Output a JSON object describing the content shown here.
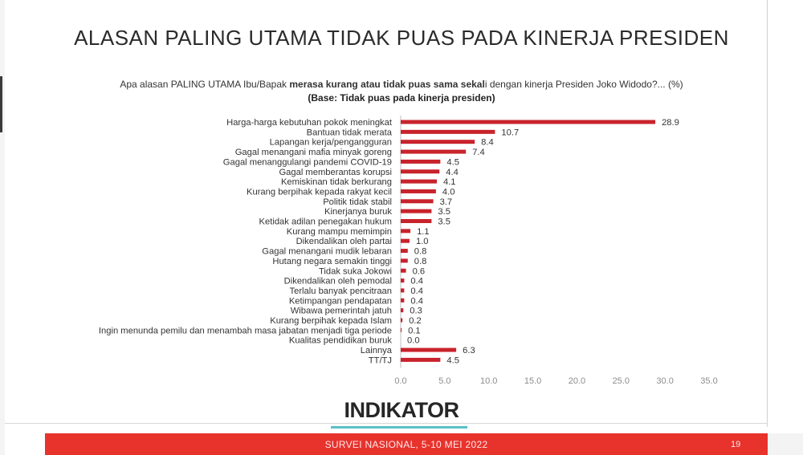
{
  "title": "ALASAN PALING UTAMA TIDAK PUAS PADA KINERJA PRESIDEN",
  "question": {
    "prefix": "Apa alasan PALING UTAMA Ibu/Bapak ",
    "bold": "merasa kurang atau tidak puas sama sekal",
    "suffix": "i dengan kinerja Presiden Joko Widodo?...  (%)"
  },
  "base": "(Base:  Tidak puas pada kinerja presiden)",
  "colors": {
    "bar": "#c8232c",
    "axis": "#bfbfbf",
    "footer": "#e8322c",
    "accent": "#59c1c7"
  },
  "chart_data": {
    "type": "bar",
    "orientation": "horizontal",
    "categories": [
      "Harga-harga kebutuhan pokok meningkat",
      "Bantuan tidak merata",
      "Lapangan kerja/pengangguran",
      "Gagal menangani mafia minyak goreng",
      "Gagal menanggulangi pandemi COVID-19",
      "Gagal memberantas korupsi",
      "Kemiskinan tidak berkurang",
      "Kurang berpihak kepada rakyat kecil",
      "Politik tidak stabil",
      "Kinerjanya buruk",
      "Ketidak adilan penegakan hukum",
      "Kurang mampu memimpin",
      "Dikendalikan oleh partai",
      "Gagal menangani mudik lebaran",
      "Hutang negara semakin tinggi",
      "Tidak suka Jokowi",
      "Dikendalikan oleh pemodal",
      "Terlalu banyak pencitraan",
      "Ketimpangan pendapatan",
      "Wibawa pemerintah jatuh",
      "Kurang berpihak kepada Islam",
      "Ingin menunda pemilu dan menambah masa jabatan menjadi tiga periode",
      "Kualitas pendidikan buruk",
      "Lainnya",
      "TT/TJ"
    ],
    "values": [
      28.9,
      10.7,
      8.4,
      7.4,
      4.5,
      4.4,
      4.1,
      4.0,
      3.7,
      3.5,
      3.5,
      1.1,
      1.0,
      0.8,
      0.8,
      0.6,
      0.4,
      0.4,
      0.4,
      0.3,
      0.2,
      0.1,
      0.0,
      6.3,
      4.5
    ],
    "value_labels": [
      "28.9",
      "10.7",
      "8.4",
      "7.4",
      "4.5",
      "4.4",
      "4.1",
      "4.0",
      "3.7",
      "3.5",
      "3.5",
      "1.1",
      "1.0",
      "0.8",
      "0.8",
      "0.6",
      "0.4",
      "0.4",
      "0.4",
      "0.3",
      "0.2",
      "0.1",
      "0.0",
      "6.3",
      "4.5"
    ],
    "xlim": [
      0,
      35
    ],
    "x_ticks": [
      "0.0",
      "5.0",
      "10.0",
      "15.0",
      "20.0",
      "25.0",
      "30.0",
      "35.0"
    ],
    "grid": false,
    "legend": "none"
  },
  "logo": {
    "text": "INDIKATOR"
  },
  "footer": {
    "text": "SURVEI NASIONAL, 5-10 MEI 2022",
    "page": "19"
  }
}
